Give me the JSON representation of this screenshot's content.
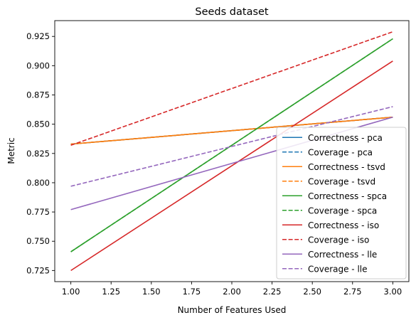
{
  "chart_data": {
    "type": "line",
    "title": "Seeds dataset",
    "xlabel": "Number of Features Used",
    "ylabel": "Metric",
    "xlim": [
      0.9,
      3.1
    ],
    "ylim": [
      0.7155,
      0.9385
    ],
    "x_ticks": [
      1.0,
      1.25,
      1.5,
      1.75,
      2.0,
      2.25,
      2.5,
      2.75,
      3.0
    ],
    "x_tick_labels": [
      "1.00",
      "1.25",
      "1.50",
      "1.75",
      "2.00",
      "2.25",
      "2.50",
      "2.75",
      "3.00"
    ],
    "y_ticks": [
      0.725,
      0.75,
      0.775,
      0.8,
      0.825,
      0.85,
      0.875,
      0.9,
      0.925
    ],
    "y_tick_labels": [
      "0.725",
      "0.750",
      "0.775",
      "0.800",
      "0.825",
      "0.850",
      "0.875",
      "0.900",
      "0.925"
    ],
    "grid": false,
    "legend_position": "lower-right",
    "series": [
      {
        "name": "Correctness - pca",
        "x": [
          1,
          3
        ],
        "y": [
          0.833,
          0.856
        ],
        "color": "#1f77b4",
        "dash": "solid"
      },
      {
        "name": "Coverage - pca",
        "x": [
          1,
          3
        ],
        "y": [
          0.833,
          0.856
        ],
        "color": "#1f77b4",
        "dash": "dashed"
      },
      {
        "name": "Correctness - tsvd",
        "x": [
          1,
          3
        ],
        "y": [
          0.833,
          0.856
        ],
        "color": "#ff7f0e",
        "dash": "solid"
      },
      {
        "name": "Coverage - tsvd",
        "x": [
          1,
          3
        ],
        "y": [
          0.833,
          0.856
        ],
        "color": "#ff7f0e",
        "dash": "dashed"
      },
      {
        "name": "Correctness - spca",
        "x": [
          1,
          3
        ],
        "y": [
          0.741,
          0.923
        ],
        "color": "#2ca02c",
        "dash": "solid"
      },
      {
        "name": "Coverage - spca",
        "x": [
          1,
          3
        ],
        "y": [
          0.741,
          0.923
        ],
        "color": "#2ca02c",
        "dash": "dashed"
      },
      {
        "name": "Correctness - iso",
        "x": [
          1,
          3
        ],
        "y": [
          0.725,
          0.904
        ],
        "color": "#d62728",
        "dash": "solid"
      },
      {
        "name": "Coverage - iso",
        "x": [
          1,
          3
        ],
        "y": [
          0.832,
          0.929
        ],
        "color": "#d62728",
        "dash": "dashed"
      },
      {
        "name": "Correctness - lle",
        "x": [
          1,
          3
        ],
        "y": [
          0.777,
          0.856
        ],
        "color": "#9467bd",
        "dash": "solid"
      },
      {
        "name": "Coverage - lle",
        "x": [
          1,
          3
        ],
        "y": [
          0.797,
          0.865
        ],
        "color": "#9467bd",
        "dash": "dashed"
      }
    ]
  }
}
